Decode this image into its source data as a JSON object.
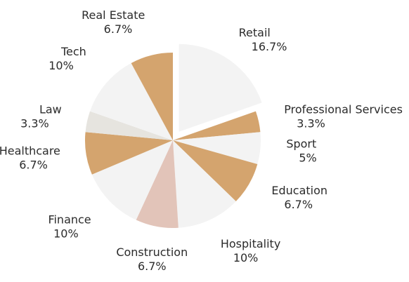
{
  "chart_data": {
    "type": "pie",
    "title": "",
    "start_angle_deg": 0,
    "direction": "clockwise",
    "slices": [
      {
        "label": "Retail",
        "pct_text": "16.7%",
        "value": 16.7,
        "color": "#f3f3f3",
        "explode": 0.12
      },
      {
        "label": "Professional Services",
        "pct_text": "3.3%",
        "value": 3.3,
        "color": "#d4a46e",
        "explode": 0
      },
      {
        "label": "Sport",
        "pct_text": "5%",
        "value": 5.0,
        "color": "#f3f3f3",
        "explode": 0
      },
      {
        "label": "Education",
        "pct_text": "6.7%",
        "value": 6.7,
        "color": "#d4a46e",
        "explode": 0
      },
      {
        "label": "Hospitality",
        "pct_text": "10%",
        "value": 10.0,
        "color": "#f3f3f3",
        "explode": 0
      },
      {
        "label": "Construction",
        "pct_text": "6.7%",
        "value": 6.7,
        "color": "#e2c4b9",
        "explode": 0
      },
      {
        "label": "Finance",
        "pct_text": "10%",
        "value": 10.0,
        "color": "#f3f3f3",
        "explode": 0
      },
      {
        "label": "Healthcare",
        "pct_text": "6.7%",
        "value": 6.7,
        "color": "#d4a46e",
        "explode": 0
      },
      {
        "label": "Law",
        "pct_text": "3.3%",
        "value": 3.3,
        "color": "#e6e4df",
        "explode": 0
      },
      {
        "label": "Tech",
        "pct_text": "10%",
        "value": 10.0,
        "color": "#f3f3f3",
        "explode": 0
      },
      {
        "label": "Real Estate",
        "pct_text": "6.7%",
        "value": 6.7,
        "color": "#d4a46e",
        "explode": 0
      }
    ]
  }
}
